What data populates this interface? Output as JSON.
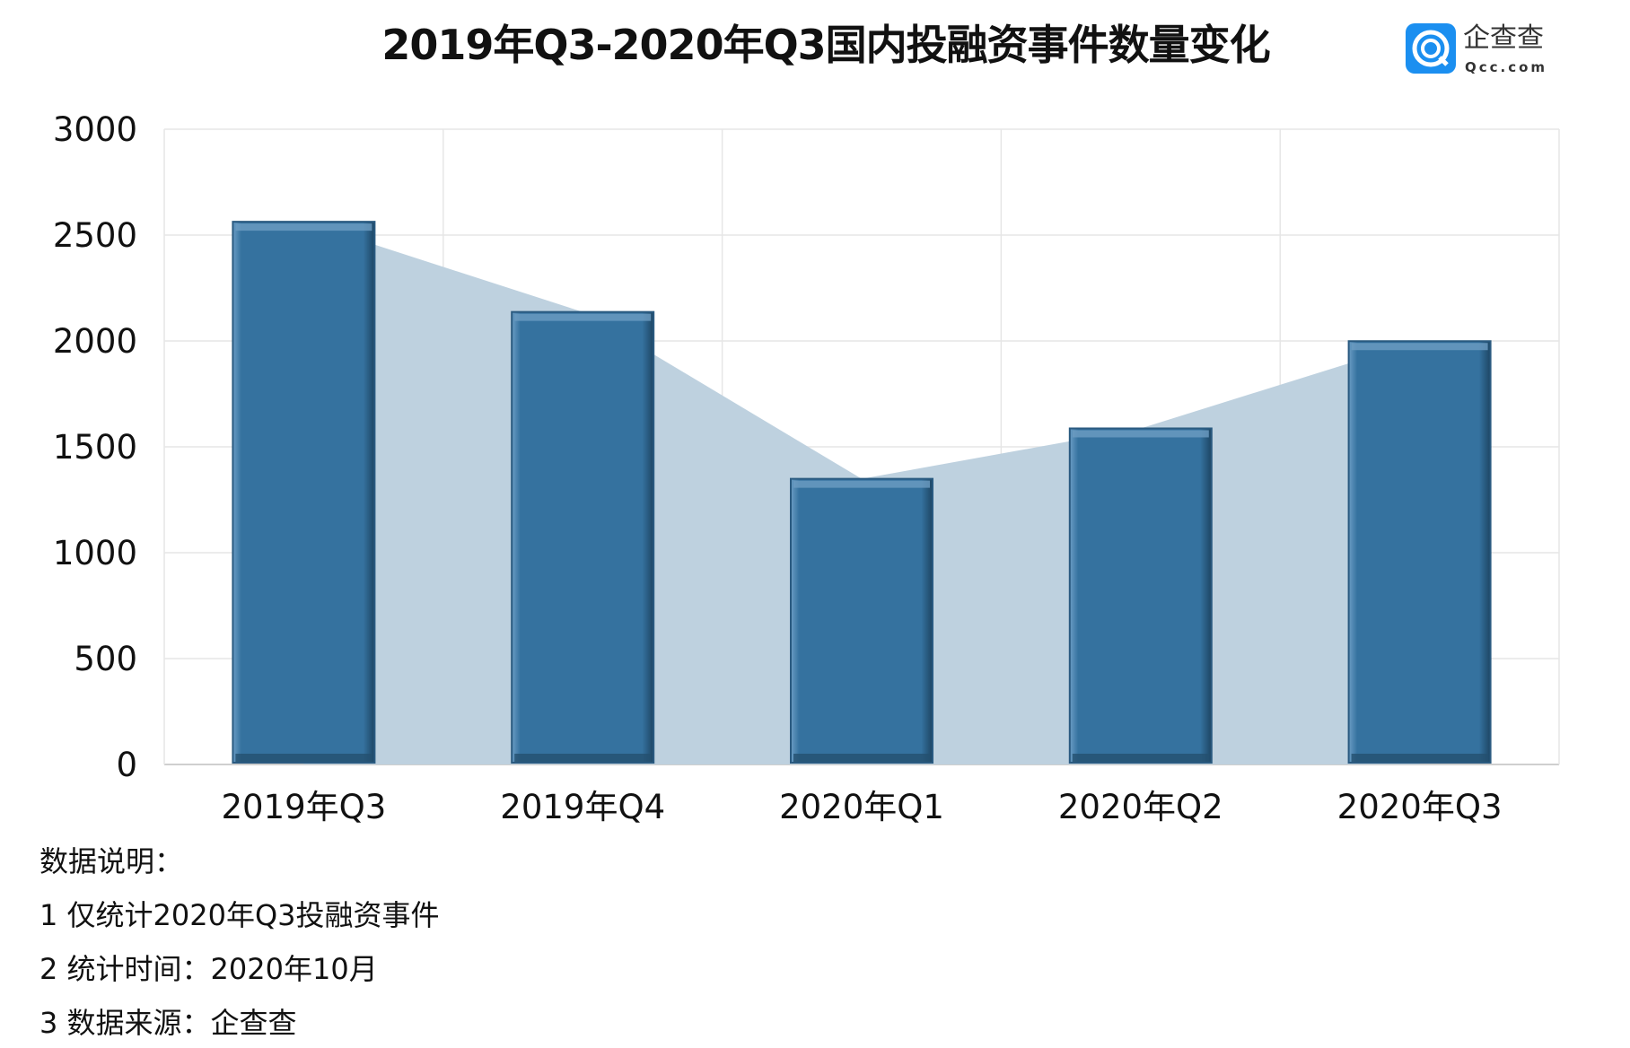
{
  "title": "2019年Q3-2020年Q3国内投融资事件数量变化",
  "logo": {
    "cn": "企查查",
    "en": "Qcc.com",
    "color": "#1b8ff0"
  },
  "chart_data": {
    "type": "bar",
    "title": "2019年Q3-2020年Q3国内投融资事件数量变化",
    "categories": [
      "2019年Q3",
      "2019年Q4",
      "2020年Q1",
      "2020年Q2",
      "2020年Q3"
    ],
    "values": [
      2563,
      2137,
      1349,
      1587,
      1999
    ],
    "overlay": "area of same values",
    "ylim": [
      0,
      3000
    ],
    "yticks": [
      "0",
      "500",
      "1000",
      "1500",
      "2000",
      "2500",
      "3000"
    ],
    "grid": true,
    "colors": {
      "bar": "#35729f",
      "area": "#bed1df",
      "grid": "#e6e6e6"
    }
  },
  "notes": {
    "heading": "数据说明：",
    "items": [
      "1 仅统计2020年Q3投融资事件",
      "2 统计时间：2020年10月",
      "3 数据来源：企查查"
    ]
  }
}
